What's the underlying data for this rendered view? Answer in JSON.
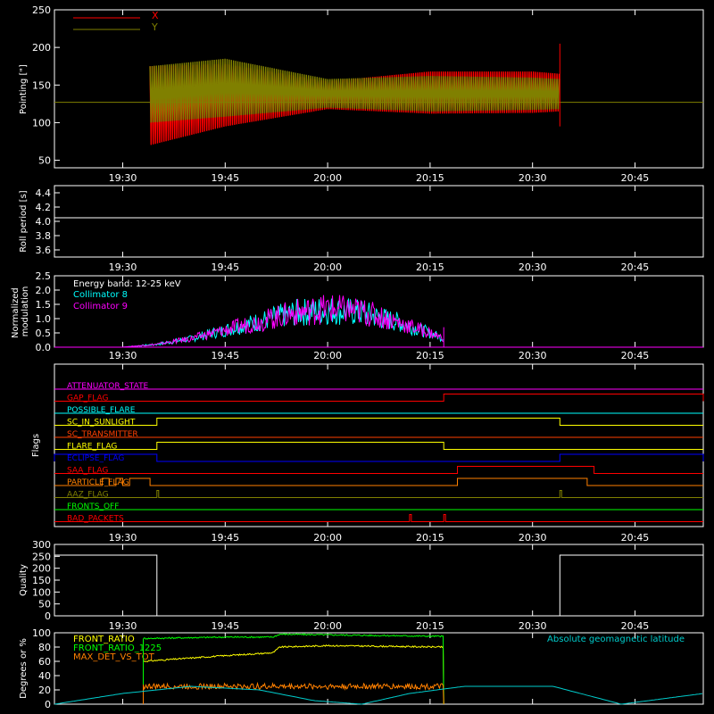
{
  "x_ticks": [
    "19:30",
    "19:45",
    "20:00",
    "20:15",
    "20:30",
    "20:45"
  ],
  "colors": {
    "x_series": "#ff0000",
    "y_series": "#808000",
    "roll": "#ffffff",
    "collimator8": "#00ffff",
    "collimator9": "#ff00ff",
    "quality": "#ffffff",
    "front_ratio": "#ffff00",
    "front_ratio_1225": "#00ff00",
    "max_det_vs_tot": "#ff8000",
    "geomag": "#00cccc"
  },
  "chart_data": [
    {
      "type": "line",
      "ylabel": "Pointing [\"]",
      "ylim": [
        40,
        250
      ],
      "y_ticks": [
        "50",
        "100",
        "150",
        "200",
        "250"
      ],
      "x_range": [
        "19:20",
        "20:55"
      ],
      "legend": [
        "X",
        "Y"
      ],
      "series": [
        {
          "name": "X",
          "x": [
            "19:34",
            "19:45",
            "20:00",
            "20:15",
            "20:30",
            "20:34"
          ],
          "min": [
            70,
            95,
            118,
            112,
            113,
            115
          ],
          "max": [
            175,
            178,
            155,
            168,
            168,
            165
          ]
        },
        {
          "name": "Y",
          "x": [
            "19:34",
            "19:45",
            "20:00",
            "20:15",
            "20:30",
            "20:34"
          ],
          "min": [
            100,
            108,
            120,
            115,
            117,
            118
          ],
          "max": [
            175,
            185,
            158,
            162,
            160,
            158
          ]
        }
      ],
      "reference_line": 127
    },
    {
      "type": "line",
      "ylabel": "Roll period [s]",
      "ylim": [
        3.5,
        4.5
      ],
      "y_ticks": [
        "3.6",
        "3.8",
        "4.0",
        "4.2",
        "4.4"
      ],
      "series": [
        {
          "name": "",
          "constant": 4.05
        }
      ]
    },
    {
      "type": "line",
      "ylabel": "Normalized modulation",
      "ylim": [
        0,
        2.5
      ],
      "y_ticks": [
        "0.0",
        "0.5",
        "1.0",
        "1.5",
        "2.0",
        "2.5"
      ],
      "annotation": "Energy band: 12-25 keV",
      "series": [
        {
          "name": "Collimator 8",
          "x": [
            "19:30",
            "19:35",
            "19:40",
            "19:45",
            "19:50",
            "19:55",
            "20:00",
            "20:05",
            "20:10",
            "20:15",
            "20:17"
          ],
          "y": [
            0.0,
            0.1,
            0.3,
            0.6,
            0.9,
            1.2,
            1.3,
            1.2,
            0.9,
            0.5,
            0.3
          ]
        },
        {
          "name": "Collimator 9",
          "x": [
            "19:30",
            "19:35",
            "19:40",
            "19:45",
            "19:50",
            "19:55",
            "20:00",
            "20:05",
            "20:10",
            "20:15",
            "20:17"
          ],
          "y": [
            0.0,
            0.1,
            0.3,
            0.6,
            0.9,
            1.2,
            1.35,
            1.25,
            0.9,
            0.5,
            0.3
          ]
        }
      ]
    },
    {
      "type": "flags",
      "ylabel": "Flags",
      "flags": [
        {
          "name": "ATTENUATOR_STATE",
          "color": "#ff00ff",
          "on": []
        },
        {
          "name": "GAP_FLAG",
          "color": "#ff0000",
          "on": [
            [
              "20:17",
              "20:55"
            ]
          ]
        },
        {
          "name": "POSSIBLE_FLARE",
          "color": "#00ffff",
          "on": []
        },
        {
          "name": "SC_IN_SUNLIGHT",
          "color": "#ffff00",
          "on": [
            [
              "19:35",
              "20:34"
            ]
          ]
        },
        {
          "name": "SC_TRANSMITTER",
          "color": "#ff4000",
          "on": []
        },
        {
          "name": "FLARE_FLAG",
          "color": "#ffff00",
          "on": [
            [
              "19:35",
              "20:17"
            ]
          ]
        },
        {
          "name": "ECLIPSE_FLAG",
          "color": "#0000ff",
          "on": [
            [
              "19:20",
              "19:35"
            ],
            [
              "20:34",
              "20:55"
            ]
          ]
        },
        {
          "name": "SAA_FLAG",
          "color": "#ff0000",
          "on": [
            [
              "20:19",
              "20:39"
            ]
          ]
        },
        {
          "name": "PARTICLE_FLAG",
          "color": "#ff8000",
          "on": [
            [
              "19:27",
              "19:28"
            ],
            [
              "19:29",
              "19:30"
            ],
            [
              "19:31",
              "19:34"
            ],
            [
              "20:19",
              "20:38"
            ]
          ]
        },
        {
          "name": "AAZ_FLAG",
          "color": "#808000",
          "on": [
            [
              "19:35",
              "19:35"
            ],
            [
              "20:34",
              "20:34"
            ]
          ]
        },
        {
          "name": "FRONTS_OFF",
          "color": "#00ff00",
          "on": []
        },
        {
          "name": "BAD_PACKETS",
          "color": "#ff0000",
          "on": [
            [
              "20:12",
              "20:12"
            ],
            [
              "20:17",
              "20:17"
            ]
          ]
        }
      ]
    },
    {
      "type": "line",
      "ylabel": "Quality",
      "ylim": [
        0,
        300
      ],
      "y_ticks": [
        "0",
        "50",
        "100",
        "150",
        "200",
        "250",
        "300"
      ],
      "series": [
        {
          "name": "",
          "x": [
            "19:20",
            "19:35",
            "19:35",
            "20:34",
            "20:34",
            "20:55"
          ],
          "y": [
            255,
            255,
            0,
            0,
            255,
            255
          ]
        }
      ]
    },
    {
      "type": "line",
      "ylabel": "Degrees or %",
      "ylim": [
        0,
        100
      ],
      "y_ticks": [
        "0",
        "20",
        "40",
        "60",
        "80",
        "100"
      ],
      "annotation": "Absolute geomagnetic latitude",
      "series": [
        {
          "name": "FRONT_RATIO",
          "x": [
            "19:33",
            "19:45",
            "19:52",
            "19:53",
            "20:00",
            "20:17"
          ],
          "y": [
            60,
            68,
            72,
            80,
            82,
            80
          ]
        },
        {
          "name": "FRONT_RATIO_1225",
          "x": [
            "19:33",
            "19:45",
            "19:52",
            "19:53",
            "20:17"
          ],
          "y": [
            92,
            94,
            94,
            98,
            95
          ]
        },
        {
          "name": "MAX_DET_VS_TOT",
          "x": [
            "19:33",
            "20:17"
          ],
          "y": [
            25,
            25
          ]
        },
        {
          "name": "Absolute geomagnetic latitude",
          "x": [
            "19:20",
            "19:30",
            "19:40",
            "19:50",
            "19:58",
            "20:05",
            "20:12",
            "20:20",
            "20:33",
            "20:43",
            "20:55"
          ],
          "y": [
            0,
            15,
            25,
            20,
            5,
            0,
            15,
            25,
            25,
            0,
            15
          ]
        }
      ]
    }
  ]
}
